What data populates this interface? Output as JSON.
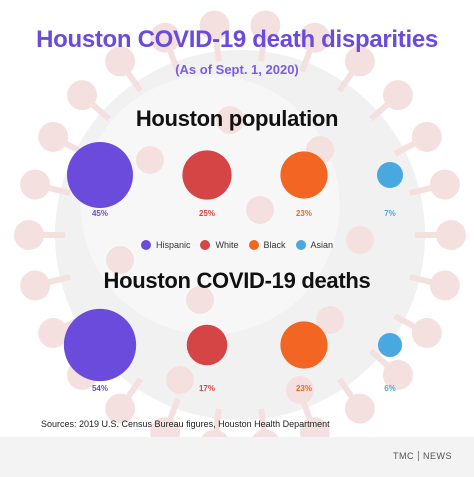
{
  "header": {
    "title": "Houston COVID-19 death disparities",
    "subtitle": "(As of Sept. 1, 2020)"
  },
  "chart_data": [
    {
      "type": "bubble",
      "title": "Houston population",
      "categories": [
        "Hispanic",
        "White",
        "Black",
        "Asian"
      ],
      "values": [
        45,
        25,
        23,
        7
      ],
      "labels": [
        "45%",
        "25%",
        "23%",
        "7%"
      ],
      "unit": "%"
    },
    {
      "type": "bubble",
      "title": "Houston COVID-19 deaths",
      "categories": [
        "Hispanic",
        "White",
        "Black",
        "Asian"
      ],
      "values": [
        54,
        17,
        23,
        6
      ],
      "labels": [
        "54%",
        "17%",
        "23%",
        "6%"
      ],
      "unit": "%"
    }
  ],
  "legend": {
    "items": [
      {
        "label": "Hispanic",
        "color": "#6a4bdc"
      },
      {
        "label": "White",
        "color": "#d64545"
      },
      {
        "label": "Black",
        "color": "#f26522"
      },
      {
        "label": "Asian",
        "color": "#4aa8e0"
      }
    ]
  },
  "colors": {
    "Hispanic": "#6a4bdc",
    "White": "#d64545",
    "Black": "#f26522",
    "Asian": "#4aa8e0",
    "title": "#6a4bdc",
    "virus": "#c94b4b"
  },
  "footer": {
    "sources": "Sources: 2019 U.S. Census Bureau figures, Houston Health Department",
    "brand_left": "TMC",
    "brand_right": "NEWS"
  }
}
